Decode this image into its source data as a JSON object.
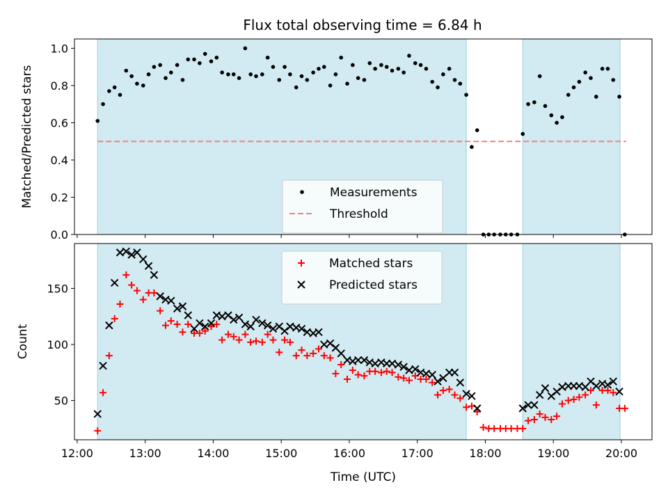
{
  "chart_data": [
    {
      "type": "scatter",
      "title": "Flux total observing time = 6.84 h",
      "xlabel": "",
      "ylabel": "Matched/Predicted stars",
      "x_unit": "hours UTC",
      "xlim": [
        11.96,
        20.45
      ],
      "ylim": [
        0,
        1.05
      ],
      "y_ticks": [
        "0.0",
        "0.2",
        "0.4",
        "0.6",
        "0.8",
        "1.0"
      ],
      "shaded_intervals": [
        [
          12.3,
          17.72
        ],
        [
          18.55,
          19.98
        ]
      ],
      "shade_color": "#add8e6",
      "threshold": 0.5,
      "threshold_range": [
        12.3,
        20.07
      ],
      "threshold_color": "#f08080",
      "legend_position": "lower center",
      "series": [
        {
          "name": "Measurements",
          "marker": "dot",
          "color": "#000000",
          "x": [
            12.3,
            12.38,
            12.47,
            12.55,
            12.63,
            12.72,
            12.8,
            12.88,
            12.97,
            13.05,
            13.13,
            13.22,
            13.3,
            13.38,
            13.47,
            13.55,
            13.63,
            13.72,
            13.8,
            13.88,
            13.97,
            14.05,
            14.13,
            14.22,
            14.3,
            14.38,
            14.47,
            14.55,
            14.63,
            14.72,
            14.8,
            14.88,
            14.97,
            15.05,
            15.13,
            15.22,
            15.3,
            15.38,
            15.47,
            15.55,
            15.63,
            15.72,
            15.8,
            15.88,
            15.97,
            16.05,
            16.13,
            16.22,
            16.3,
            16.38,
            16.47,
            16.55,
            16.63,
            16.72,
            16.8,
            16.88,
            16.97,
            17.05,
            17.13,
            17.22,
            17.3,
            17.38,
            17.47,
            17.55,
            17.63,
            17.72,
            17.8,
            17.88,
            17.97,
            18.05,
            18.13,
            18.22,
            18.3,
            18.38,
            18.47,
            18.55,
            18.63,
            18.72,
            18.8,
            18.88,
            18.97,
            19.05,
            19.13,
            19.22,
            19.3,
            19.38,
            19.47,
            19.55,
            19.63,
            19.72,
            19.8,
            19.88,
            19.97,
            20.05
          ],
          "y": [
            0.61,
            0.7,
            0.77,
            0.79,
            0.75,
            0.88,
            0.85,
            0.81,
            0.8,
            0.86,
            0.9,
            0.91,
            0.84,
            0.87,
            0.91,
            0.83,
            0.94,
            0.94,
            0.92,
            0.97,
            0.93,
            0.95,
            0.87,
            0.86,
            0.86,
            0.84,
            1.0,
            0.86,
            0.85,
            0.86,
            0.95,
            0.9,
            0.83,
            0.9,
            0.86,
            0.79,
            0.85,
            0.83,
            0.87,
            0.89,
            0.9,
            0.8,
            0.86,
            0.95,
            0.81,
            0.91,
            0.84,
            0.83,
            0.92,
            0.89,
            0.91,
            0.9,
            0.88,
            0.89,
            0.87,
            0.96,
            0.92,
            0.91,
            0.89,
            0.82,
            0.79,
            0.86,
            0.89,
            0.83,
            0.81,
            0.75,
            0.47,
            0.56,
            0.0,
            0.0,
            0.0,
            0.0,
            0.0,
            0.0,
            0.0,
            0.54,
            0.7,
            0.71,
            0.85,
            0.69,
            0.64,
            0.6,
            0.63,
            0.75,
            0.79,
            0.82,
            0.87,
            0.84,
            0.74,
            0.89,
            0.89,
            0.83,
            0.74,
            0.0
          ]
        },
        {
          "name": "Threshold",
          "line": "dashed",
          "color": "#f08080",
          "y": 0.5
        }
      ]
    },
    {
      "type": "scatter",
      "xlabel": "Time (UTC)",
      "ylabel": "Count",
      "x_unit": "hours UTC",
      "xlim": [
        11.96,
        20.45
      ],
      "ylim": [
        15,
        190
      ],
      "x_tick_values": [
        12,
        13,
        14,
        15,
        16,
        17,
        18,
        19,
        20
      ],
      "x_ticks": [
        "12:00",
        "13:00",
        "14:00",
        "15:00",
        "16:00",
        "17:00",
        "18:00",
        "19:00",
        "20:00"
      ],
      "y_ticks": [
        "50",
        "100",
        "150"
      ],
      "shaded_intervals": [
        [
          12.3,
          17.72
        ],
        [
          18.55,
          19.98
        ]
      ],
      "shade_color": "#add8e6",
      "legend_position": "upper center",
      "series": [
        {
          "name": "Matched stars",
          "marker": "plus",
          "color": "#ff0000",
          "x": [
            12.3,
            12.38,
            12.47,
            12.55,
            12.63,
            12.72,
            12.8,
            12.88,
            12.97,
            13.05,
            13.13,
            13.22,
            13.3,
            13.38,
            13.47,
            13.55,
            13.63,
            13.72,
            13.8,
            13.88,
            13.97,
            14.05,
            14.13,
            14.22,
            14.3,
            14.38,
            14.47,
            14.55,
            14.63,
            14.72,
            14.8,
            14.88,
            14.97,
            15.05,
            15.13,
            15.22,
            15.3,
            15.38,
            15.47,
            15.55,
            15.63,
            15.72,
            15.8,
            15.88,
            15.97,
            16.05,
            16.13,
            16.22,
            16.3,
            16.38,
            16.47,
            16.55,
            16.63,
            16.72,
            16.8,
            16.88,
            16.97,
            17.05,
            17.13,
            17.22,
            17.3,
            17.38,
            17.47,
            17.55,
            17.63,
            17.72,
            17.8,
            17.88,
            17.97,
            18.05,
            18.13,
            18.22,
            18.3,
            18.38,
            18.47,
            18.55,
            18.63,
            18.72,
            18.8,
            18.88,
            18.97,
            19.05,
            19.13,
            19.22,
            19.3,
            19.38,
            19.47,
            19.55,
            19.63,
            19.72,
            19.8,
            19.88,
            19.97,
            20.05
          ],
          "y": [
            23,
            57,
            90,
            123,
            136,
            162,
            153,
            148,
            140,
            146,
            146,
            130,
            117,
            121,
            118,
            111,
            118,
            110,
            110,
            112,
            116,
            118,
            104,
            109,
            107,
            104,
            109,
            102,
            103,
            102,
            109,
            104,
            93,
            104,
            102,
            90,
            95,
            90,
            92,
            96,
            90,
            88,
            74,
            82,
            69,
            77,
            73,
            72,
            76,
            76,
            75,
            76,
            75,
            71,
            70,
            68,
            72,
            69,
            69,
            66,
            55,
            59,
            60,
            55,
            52,
            44,
            45,
            40,
            26,
            25,
            25,
            25,
            25,
            25,
            25,
            25,
            32,
            33,
            38,
            35,
            33,
            36,
            47,
            50,
            51,
            53,
            55,
            59,
            46,
            59,
            59,
            57,
            43,
            43
          ]
        },
        {
          "name": "Predicted stars",
          "marker": "x",
          "color": "#000000",
          "x": [
            12.3,
            12.38,
            12.47,
            12.55,
            12.63,
            12.72,
            12.8,
            12.88,
            12.97,
            13.05,
            13.13,
            13.22,
            13.3,
            13.38,
            13.47,
            13.55,
            13.63,
            13.72,
            13.8,
            13.88,
            13.97,
            14.05,
            14.13,
            14.22,
            14.3,
            14.38,
            14.47,
            14.55,
            14.63,
            14.72,
            14.8,
            14.88,
            14.97,
            15.05,
            15.13,
            15.22,
            15.3,
            15.38,
            15.47,
            15.55,
            15.63,
            15.72,
            15.8,
            15.88,
            15.97,
            16.05,
            16.13,
            16.22,
            16.3,
            16.38,
            16.47,
            16.55,
            16.63,
            16.72,
            16.8,
            16.88,
            16.97,
            17.05,
            17.13,
            17.22,
            17.3,
            17.38,
            17.47,
            17.55,
            17.63,
            17.72,
            17.8,
            17.88,
            18.55,
            18.63,
            18.72,
            18.8,
            18.88,
            18.97,
            19.05,
            19.13,
            19.22,
            19.3,
            19.38,
            19.47,
            19.55,
            19.63,
            19.72,
            19.8,
            19.88,
            19.97
          ],
          "y": [
            38,
            81,
            117,
            155,
            182,
            183,
            180,
            182,
            176,
            170,
            162,
            143,
            140,
            139,
            132,
            134,
            126,
            114,
            119,
            116,
            119,
            126,
            125,
            126,
            122,
            124,
            118,
            116,
            122,
            119,
            117,
            114,
            116,
            112,
            116,
            115,
            114,
            111,
            110,
            111,
            100,
            101,
            97,
            92,
            86,
            85,
            86,
            86,
            84,
            83,
            84,
            83,
            83,
            82,
            80,
            77,
            78,
            75,
            74,
            73,
            67,
            70,
            75,
            75,
            66,
            56,
            54,
            43,
            43,
            46,
            46,
            55,
            61,
            54,
            58,
            62,
            63,
            63,
            63,
            62,
            67,
            63,
            65,
            64,
            67,
            58
          ]
        }
      ]
    }
  ]
}
